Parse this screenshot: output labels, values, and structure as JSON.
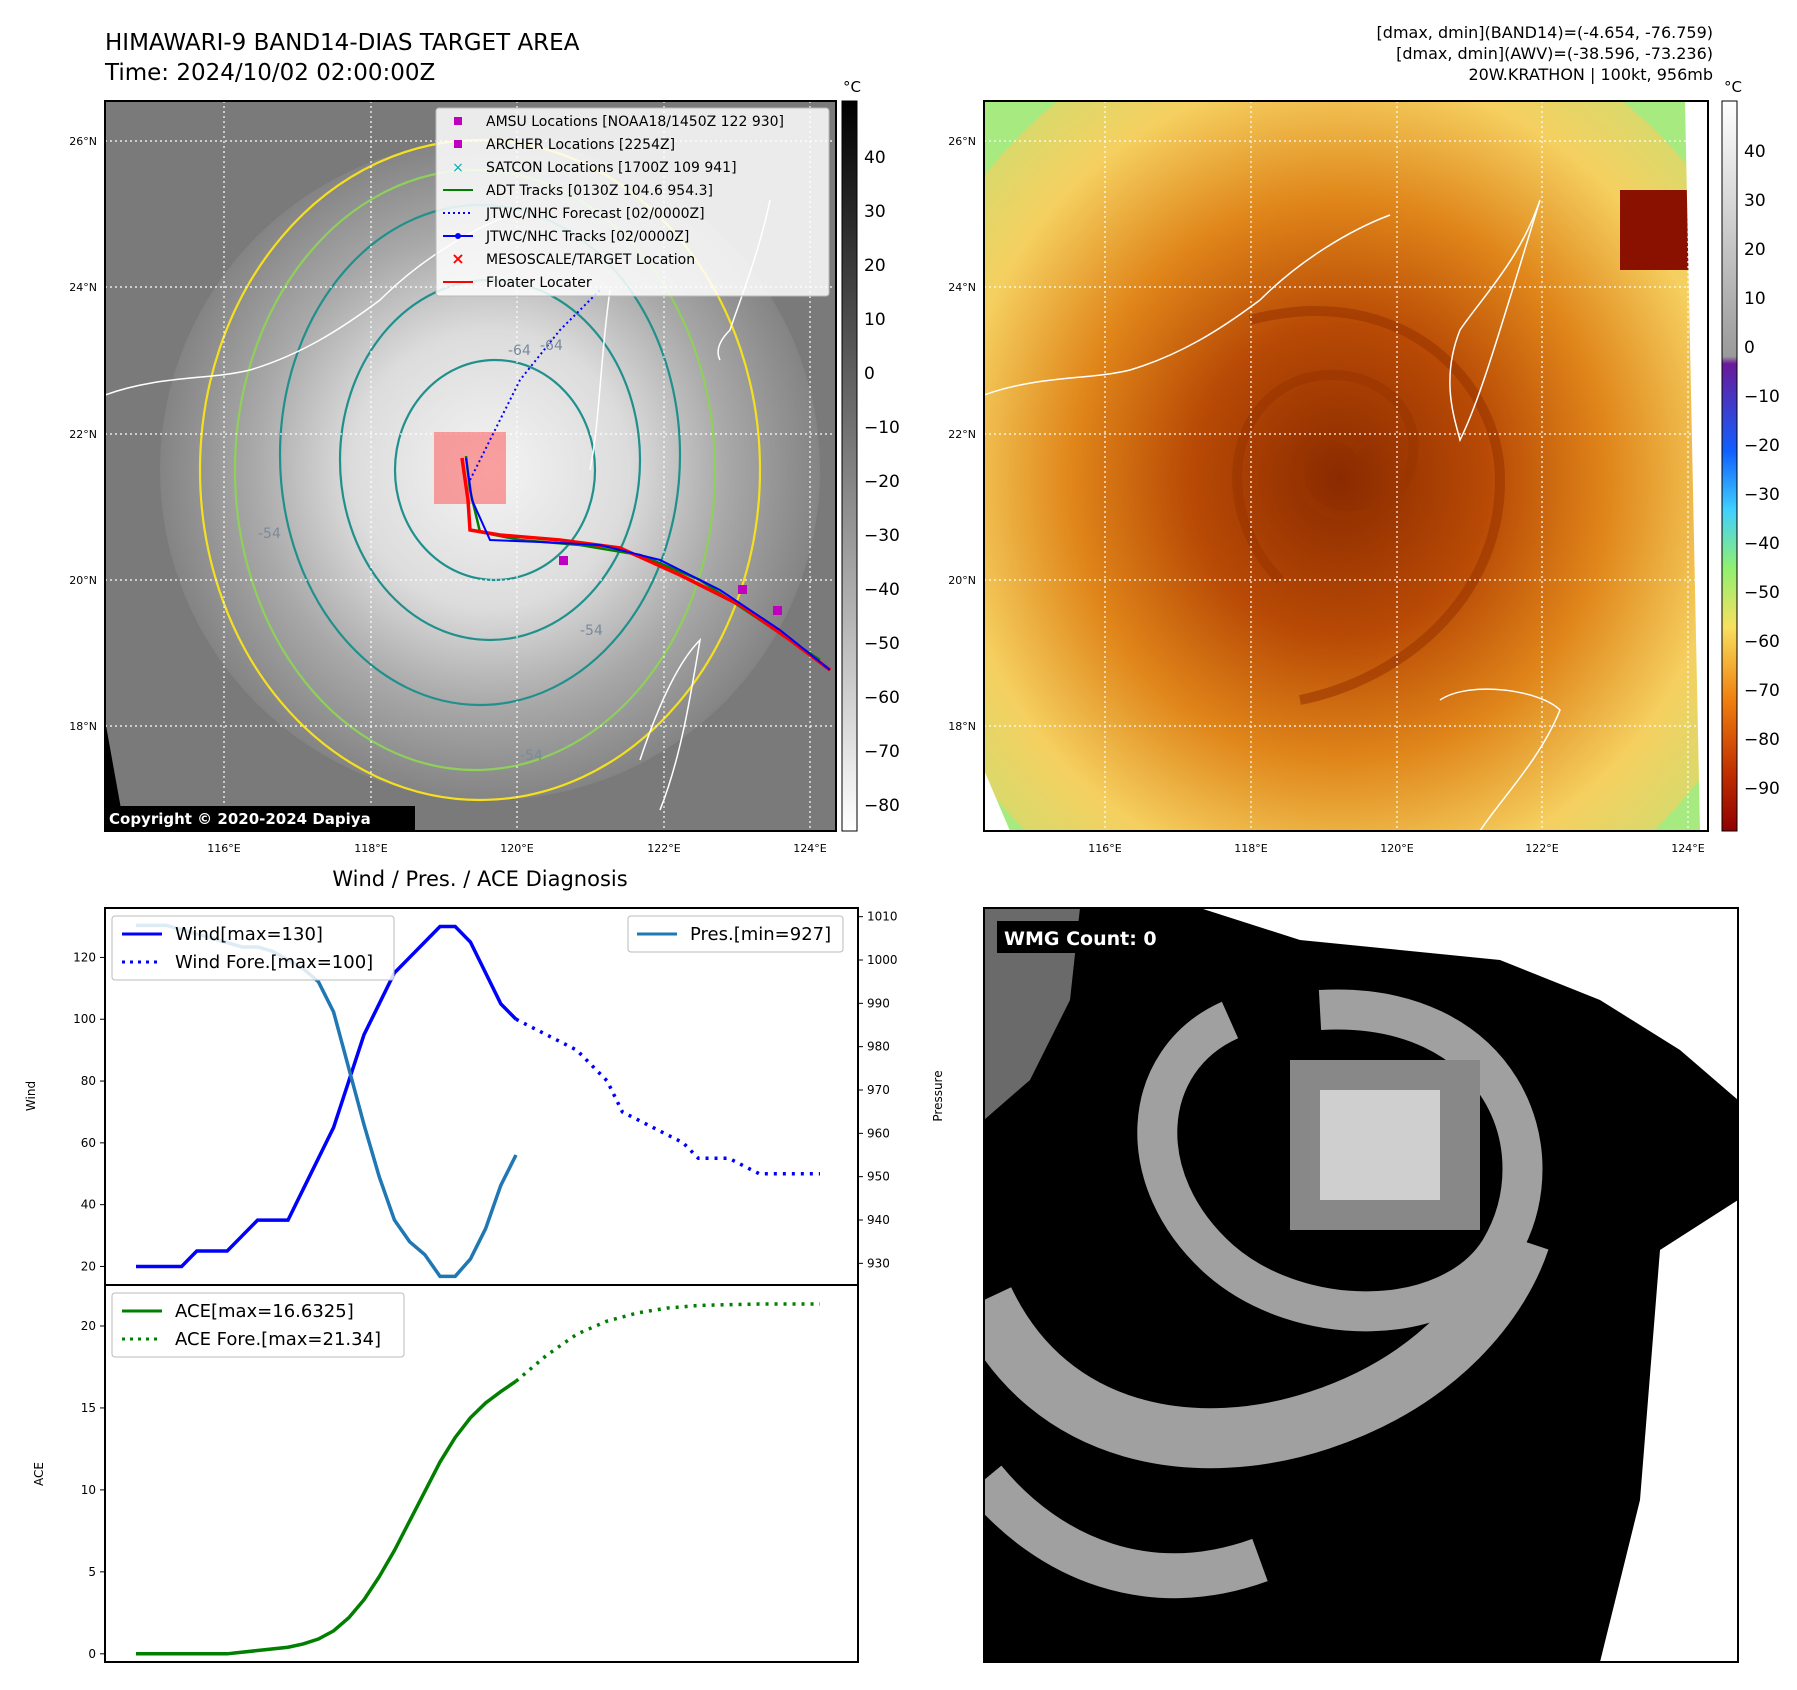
{
  "header": {
    "title_line1": "HIMAWARI-9 BAND14-DIAS TARGET AREA",
    "title_line2": "Time: 2024/10/02 02:00:00Z",
    "info_line1": "[dmax, dmin](BAND14)=(-4.654, -76.759)",
    "info_line2": "[dmax, dmin](AWV)=(-38.596, -73.236)",
    "info_line3": "20W.KRATHON | 100kt, 956mb"
  },
  "colors": {
    "amsu": "#c000c0",
    "archer": "#c000c0",
    "satcon": "#00b0b0",
    "adt": "#007f00",
    "jtwc_forecast": "#0000ff",
    "jtwc_track": "#0000ff",
    "target": "#ff0000",
    "floater": "#ff0000",
    "wind": "#0000ff",
    "pressure": "#1f77b4",
    "ace": "#007f00",
    "contour_yellow": "#f5e020",
    "contour_lightgreen": "#8fd05a",
    "contour_teal": "#20908c"
  },
  "map_left": {
    "lat_ticks": [
      "26°N",
      "24°N",
      "22°N",
      "20°N",
      "18°N"
    ],
    "lon_ticks": [
      "116°E",
      "118°E",
      "120°E",
      "122°E",
      "124°E"
    ],
    "contour_labels": [
      "-64",
      "-64",
      "-54",
      "-54",
      "-54"
    ],
    "copyright": "Copyright © 2020-2024 Dapiya",
    "colorbar_unit": "°C",
    "colorbar_ticks": [
      "40",
      "30",
      "20",
      "10",
      "0",
      "−10",
      "−20",
      "−30",
      "−40",
      "−50",
      "−60",
      "−70",
      "−80"
    ],
    "legend": [
      {
        "label": "AMSU Locations [NOAA18/1450Z 122 930]",
        "marker": "square",
        "color_key": "amsu"
      },
      {
        "label": "ARCHER Locations [2254Z]",
        "marker": "square",
        "color_key": "archer"
      },
      {
        "label": "SATCON Locations [1700Z 109 941]",
        "marker": "x",
        "color_key": "satcon"
      },
      {
        "label": "ADT Tracks [0130Z 104.6 954.3]",
        "marker": "line",
        "color_key": "adt"
      },
      {
        "label": "JTWC/NHC Forecast [02/0000Z]",
        "marker": "dotted",
        "color_key": "jtwc_forecast"
      },
      {
        "label": "JTWC/NHC Tracks [02/0000Z]",
        "marker": "line-dot",
        "color_key": "jtwc_track"
      },
      {
        "label": "MESOSCALE/TARGET Location",
        "marker": "x",
        "color_key": "target"
      },
      {
        "label": "Floater Locater",
        "marker": "line",
        "color_key": "floater"
      }
    ]
  },
  "map_right": {
    "lat_ticks": [
      "26°N",
      "24°N",
      "22°N",
      "20°N",
      "18°N"
    ],
    "lon_ticks": [
      "116°E",
      "118°E",
      "120°E",
      "122°E",
      "124°E"
    ],
    "colorbar_unit": "°C",
    "colorbar_ticks": [
      "40",
      "30",
      "20",
      "10",
      "0",
      "−10",
      "−20",
      "−30",
      "−40",
      "−50",
      "−60",
      "−70",
      "−80",
      "−90"
    ]
  },
  "wmg": {
    "label": "WMG Count: 0"
  },
  "chart_data": [
    {
      "type": "line",
      "title": "Wind / Pres. / ACE Diagnosis",
      "ylabel": "Wind",
      "ylabel_right": "Pressure",
      "ylim": [
        14,
        136
      ],
      "ylim_right": [
        925,
        1012
      ],
      "yticks": [
        20,
        40,
        60,
        80,
        100,
        120
      ],
      "yticks_right": [
        930,
        940,
        950,
        960,
        970,
        980,
        990,
        1000,
        1010
      ],
      "legend_left": [
        "Wind[max=130]",
        "Wind Fore.[max=100]"
      ],
      "legend_right": [
        "Pres.[min=927]"
      ],
      "series": [
        {
          "name": "Wind[max=130]",
          "style": "solid",
          "color_key": "wind",
          "axis": "left",
          "x": [
            0,
            1,
            2,
            3,
            4,
            5,
            6,
            7,
            8,
            9,
            10,
            11,
            12,
            13,
            14,
            15,
            16,
            17,
            18,
            19,
            20,
            21,
            22,
            23,
            24,
            25
          ],
          "values": [
            20,
            20,
            20,
            20,
            25,
            25,
            25,
            30,
            35,
            35,
            35,
            45,
            55,
            65,
            80,
            95,
            105,
            115,
            120,
            125,
            130,
            130,
            125,
            115,
            105,
            100
          ]
        },
        {
          "name": "Wind Fore.[max=100]",
          "style": "dotted",
          "color_key": "wind",
          "axis": "left",
          "x": [
            25,
            27,
            29,
            31,
            32,
            34,
            36,
            37,
            39,
            41,
            42,
            43,
            45
          ],
          "values": [
            100,
            95,
            90,
            80,
            70,
            65,
            60,
            55,
            55,
            50,
            50,
            50,
            50
          ]
        },
        {
          "name": "Pres.[min=927]",
          "style": "solid",
          "color_key": "pressure",
          "axis": "right",
          "x": [
            0,
            1,
            2,
            3,
            4,
            5,
            6,
            7,
            8,
            9,
            10,
            11,
            12,
            13,
            14,
            15,
            16,
            17,
            18,
            19,
            20,
            21,
            22,
            23,
            24,
            25
          ],
          "values": [
            1008,
            1008,
            1008,
            1007,
            1006,
            1005,
            1004,
            1003,
            1003,
            1002,
            1000,
            998,
            995,
            988,
            975,
            962,
            950,
            940,
            935,
            932,
            927,
            927,
            931,
            938,
            948,
            955
          ]
        }
      ]
    },
    {
      "type": "line",
      "ylabel": "ACE",
      "ylim": [
        -0.5,
        22.5
      ],
      "yticks": [
        0,
        5,
        10,
        15,
        20
      ],
      "legend": [
        "ACE[max=16.6325]",
        "ACE Fore.[max=21.34]"
      ],
      "series": [
        {
          "name": "ACE[max=16.6325]",
          "style": "solid",
          "color_key": "ace",
          "x": [
            0,
            2,
            4,
            6,
            8,
            10,
            11,
            12,
            13,
            14,
            15,
            16,
            17,
            18,
            19,
            20,
            21,
            22,
            23,
            24,
            25
          ],
          "values": [
            0,
            0,
            0,
            0,
            0.2,
            0.4,
            0.6,
            0.9,
            1.4,
            2.2,
            3.3,
            4.7,
            6.3,
            8.1,
            9.9,
            11.7,
            13.2,
            14.4,
            15.3,
            16.0,
            16.63
          ]
        },
        {
          "name": "ACE Fore.[max=21.34]",
          "style": "dotted",
          "color_key": "ace",
          "x": [
            25,
            27,
            29,
            31,
            33,
            35,
            37,
            39,
            41,
            43,
            45
          ],
          "values": [
            16.63,
            18.2,
            19.5,
            20.3,
            20.8,
            21.1,
            21.25,
            21.3,
            21.34,
            21.34,
            21.34
          ]
        }
      ]
    }
  ]
}
